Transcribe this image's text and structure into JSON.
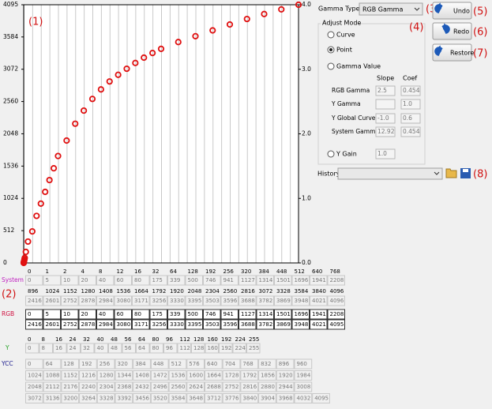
{
  "chart_data": {
    "type": "scatter",
    "x": [
      0,
      1,
      2,
      4,
      8,
      12,
      16,
      32,
      64,
      128,
      192,
      256,
      320,
      384,
      448,
      512,
      640,
      768,
      896,
      1024,
      1152,
      1280,
      1408,
      1536,
      1664,
      1792,
      1920,
      2048,
      2304,
      2560,
      2816,
      3072,
      3328,
      3584,
      3840,
      4096
    ],
    "values": [
      0,
      5,
      10,
      20,
      40,
      60,
      80,
      175,
      339,
      500,
      746,
      941,
      1127,
      1314,
      1501,
      1696,
      1941,
      2208,
      2416,
      2601,
      2752,
      2878,
      2984,
      3080,
      3171,
      3256,
      3330,
      3395,
      3503,
      3596,
      3688,
      3782,
      3869,
      3948,
      4021,
      4095
    ],
    "color": "#e01010",
    "xlim": [
      0,
      4096
    ],
    "ylim": [
      0,
      4095
    ],
    "yticks": [
      0,
      512,
      1024,
      1536,
      2048,
      2560,
      3072,
      3584,
      4095
    ],
    "y2lim": [
      0,
      4
    ],
    "y2ticks": [
      {
        "value": 0,
        "label": "0.0"
      },
      {
        "value": 1,
        "label": "1.0"
      },
      {
        "value": 2,
        "label": "2.0"
      },
      {
        "value": 3,
        "label": "3.0"
      },
      {
        "value": 4,
        "label": "4.0"
      }
    ]
  },
  "annotations": {
    "chart": "(1)",
    "tables": "(2)",
    "gamma_type": "(3)",
    "adjust_mode": "(4)",
    "undo": "(5)",
    "redo": "(6)",
    "restore": "(7)",
    "history": "(8)"
  },
  "panel": {
    "gamma_type_label": "Gamma Type:",
    "gamma_type_value": "RGB Gamma",
    "adjust_mode": {
      "title": "Adjust Mode",
      "options": [
        "Curve",
        "Point",
        "Gamma Value"
      ],
      "selected": 1,
      "headers": [
        "Slope",
        "Coef"
      ],
      "rows": [
        {
          "label": "RGB Gamma",
          "slope": "2.5",
          "coef": "0.454"
        },
        {
          "label": "Y Gamma",
          "coef": "1.0"
        },
        {
          "label": "Y Global Curve",
          "slope": "-1.0",
          "coef": "0.6"
        },
        {
          "label": "System Gamma",
          "slope": "12.92",
          "coef": "0.454"
        }
      ],
      "y_gain": {
        "label": "Y Gain",
        "value": "1.0"
      }
    },
    "buttons": [
      "Undo",
      "Redo",
      "Restore"
    ],
    "history_label": "History:"
  },
  "tables": {
    "headers": [
      [
        0,
        1,
        2,
        4,
        8,
        12,
        16,
        32,
        64,
        128,
        192,
        256,
        320,
        384,
        448,
        512,
        640,
        768
      ],
      [
        896,
        1024,
        1152,
        1280,
        1408,
        1536,
        1664,
        1792,
        1920,
        2048,
        2304,
        2560,
        2816,
        3072,
        3328,
        3584,
        3840,
        4096
      ]
    ],
    "system": {
      "label": "System",
      "rows": [
        [
          0,
          5,
          10,
          20,
          40,
          60,
          80,
          175,
          339,
          500,
          746,
          941,
          1127,
          1314,
          1501,
          1696,
          1941,
          2208
        ],
        [
          2416,
          2601,
          2752,
          2878,
          2984,
          3080,
          3171,
          3256,
          3330,
          3395,
          3503,
          3596,
          3688,
          3782,
          3869,
          3948,
          4021,
          4096
        ]
      ]
    },
    "rgb": {
      "label": "RGB",
      "rows": [
        [
          0,
          5,
          10,
          20,
          40,
          60,
          80,
          175,
          339,
          500,
          746,
          941,
          1127,
          1314,
          1501,
          1696,
          1941,
          2208
        ],
        [
          2416,
          2601,
          2752,
          2878,
          2984,
          3080,
          3171,
          3256,
          3330,
          3395,
          3503,
          3596,
          3688,
          3782,
          3869,
          3948,
          4021,
          4095
        ]
      ]
    },
    "y": {
      "label": "Y",
      "headers": [
        0,
        8,
        16,
        24,
        32,
        40,
        48,
        56,
        64,
        80,
        96,
        112,
        128,
        160,
        192,
        224,
        255
      ],
      "values": [
        0,
        8,
        16,
        24,
        32,
        40,
        48,
        56,
        64,
        80,
        96,
        112,
        128,
        160,
        192,
        224,
        255
      ]
    },
    "ycc": {
      "label": "YCC",
      "rows": [
        [
          0,
          64,
          128,
          192,
          256,
          320,
          384,
          448,
          512,
          576,
          640,
          704,
          768,
          832,
          896,
          960
        ],
        [
          1024,
          1088,
          1152,
          1216,
          1280,
          1344,
          1408,
          1472,
          1536,
          1600,
          1664,
          1728,
          1792,
          1856,
          1920,
          1984
        ],
        [
          2048,
          2112,
          2176,
          2240,
          2304,
          2368,
          2432,
          2496,
          2560,
          2624,
          2688,
          2752,
          2816,
          2880,
          2944,
          3008
        ],
        [
          3072,
          3136,
          3200,
          3264,
          3328,
          3392,
          3456,
          3520,
          3584,
          3648,
          3712,
          3776,
          3840,
          3904,
          3968,
          4032,
          4095
        ]
      ]
    }
  }
}
